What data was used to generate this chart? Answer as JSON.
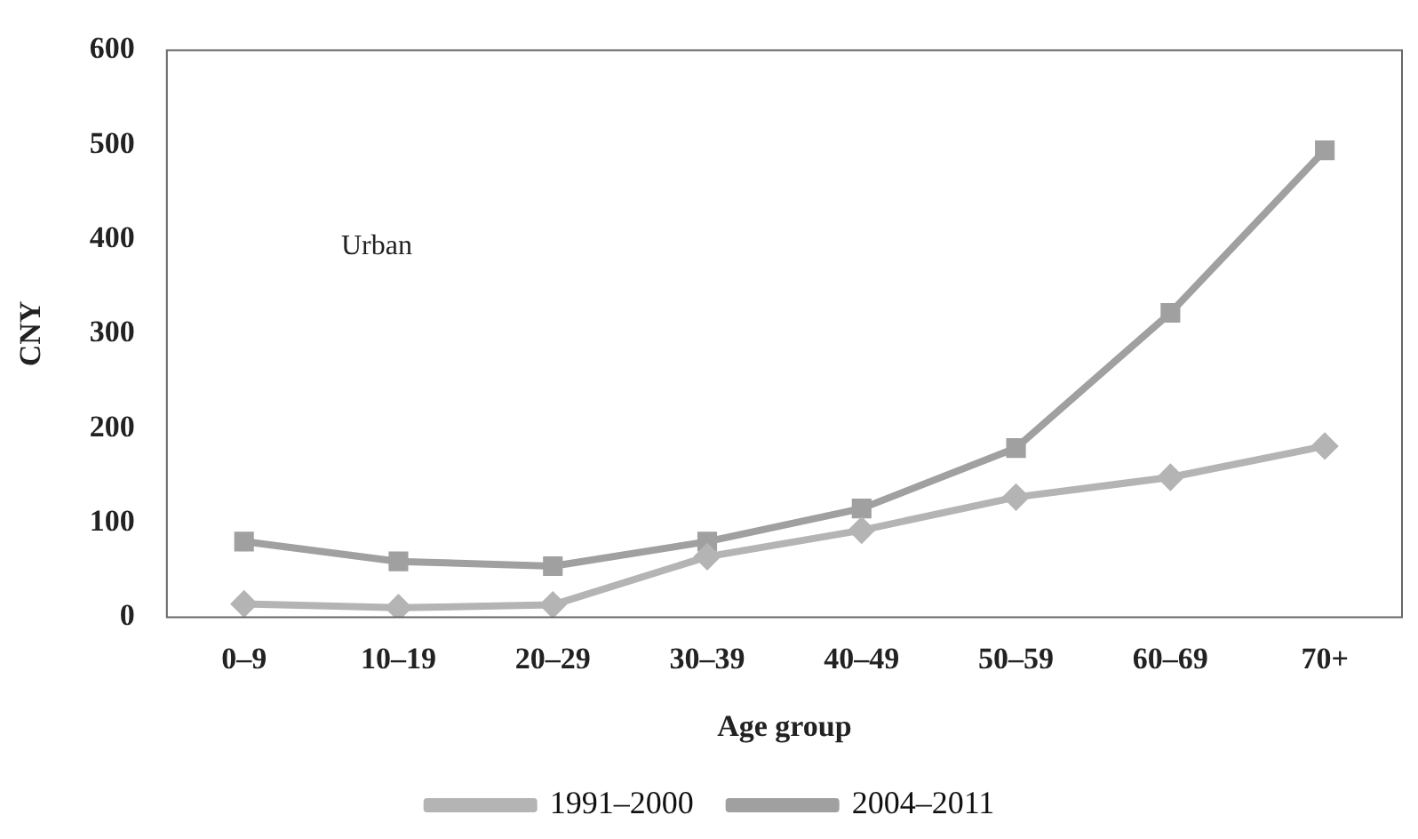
{
  "chart_data": {
    "type": "line",
    "xlabel": "Age group",
    "ylabel": "CNY",
    "categories": [
      "0–9",
      "10–19",
      "20–29",
      "30–39",
      "40–49",
      "50–59",
      "60–69",
      "70+"
    ],
    "series": [
      {
        "name": "1991–2000",
        "color": "#b4b4b4",
        "marker": "diamond",
        "values": [
          14,
          10,
          13,
          64,
          92,
          127,
          148,
          181
        ]
      },
      {
        "name": "2004–2011",
        "color": "#a0a0a0",
        "marker": "square",
        "values": [
          80,
          59,
          54,
          80,
          115,
          179,
          322,
          494
        ]
      }
    ],
    "ylim": [
      0,
      600
    ],
    "yticks": [
      0,
      100,
      200,
      300,
      400,
      500,
      600
    ],
    "annotations": [
      "Urban"
    ],
    "grid": false,
    "legend": "bottom",
    "line_style": "solid"
  }
}
